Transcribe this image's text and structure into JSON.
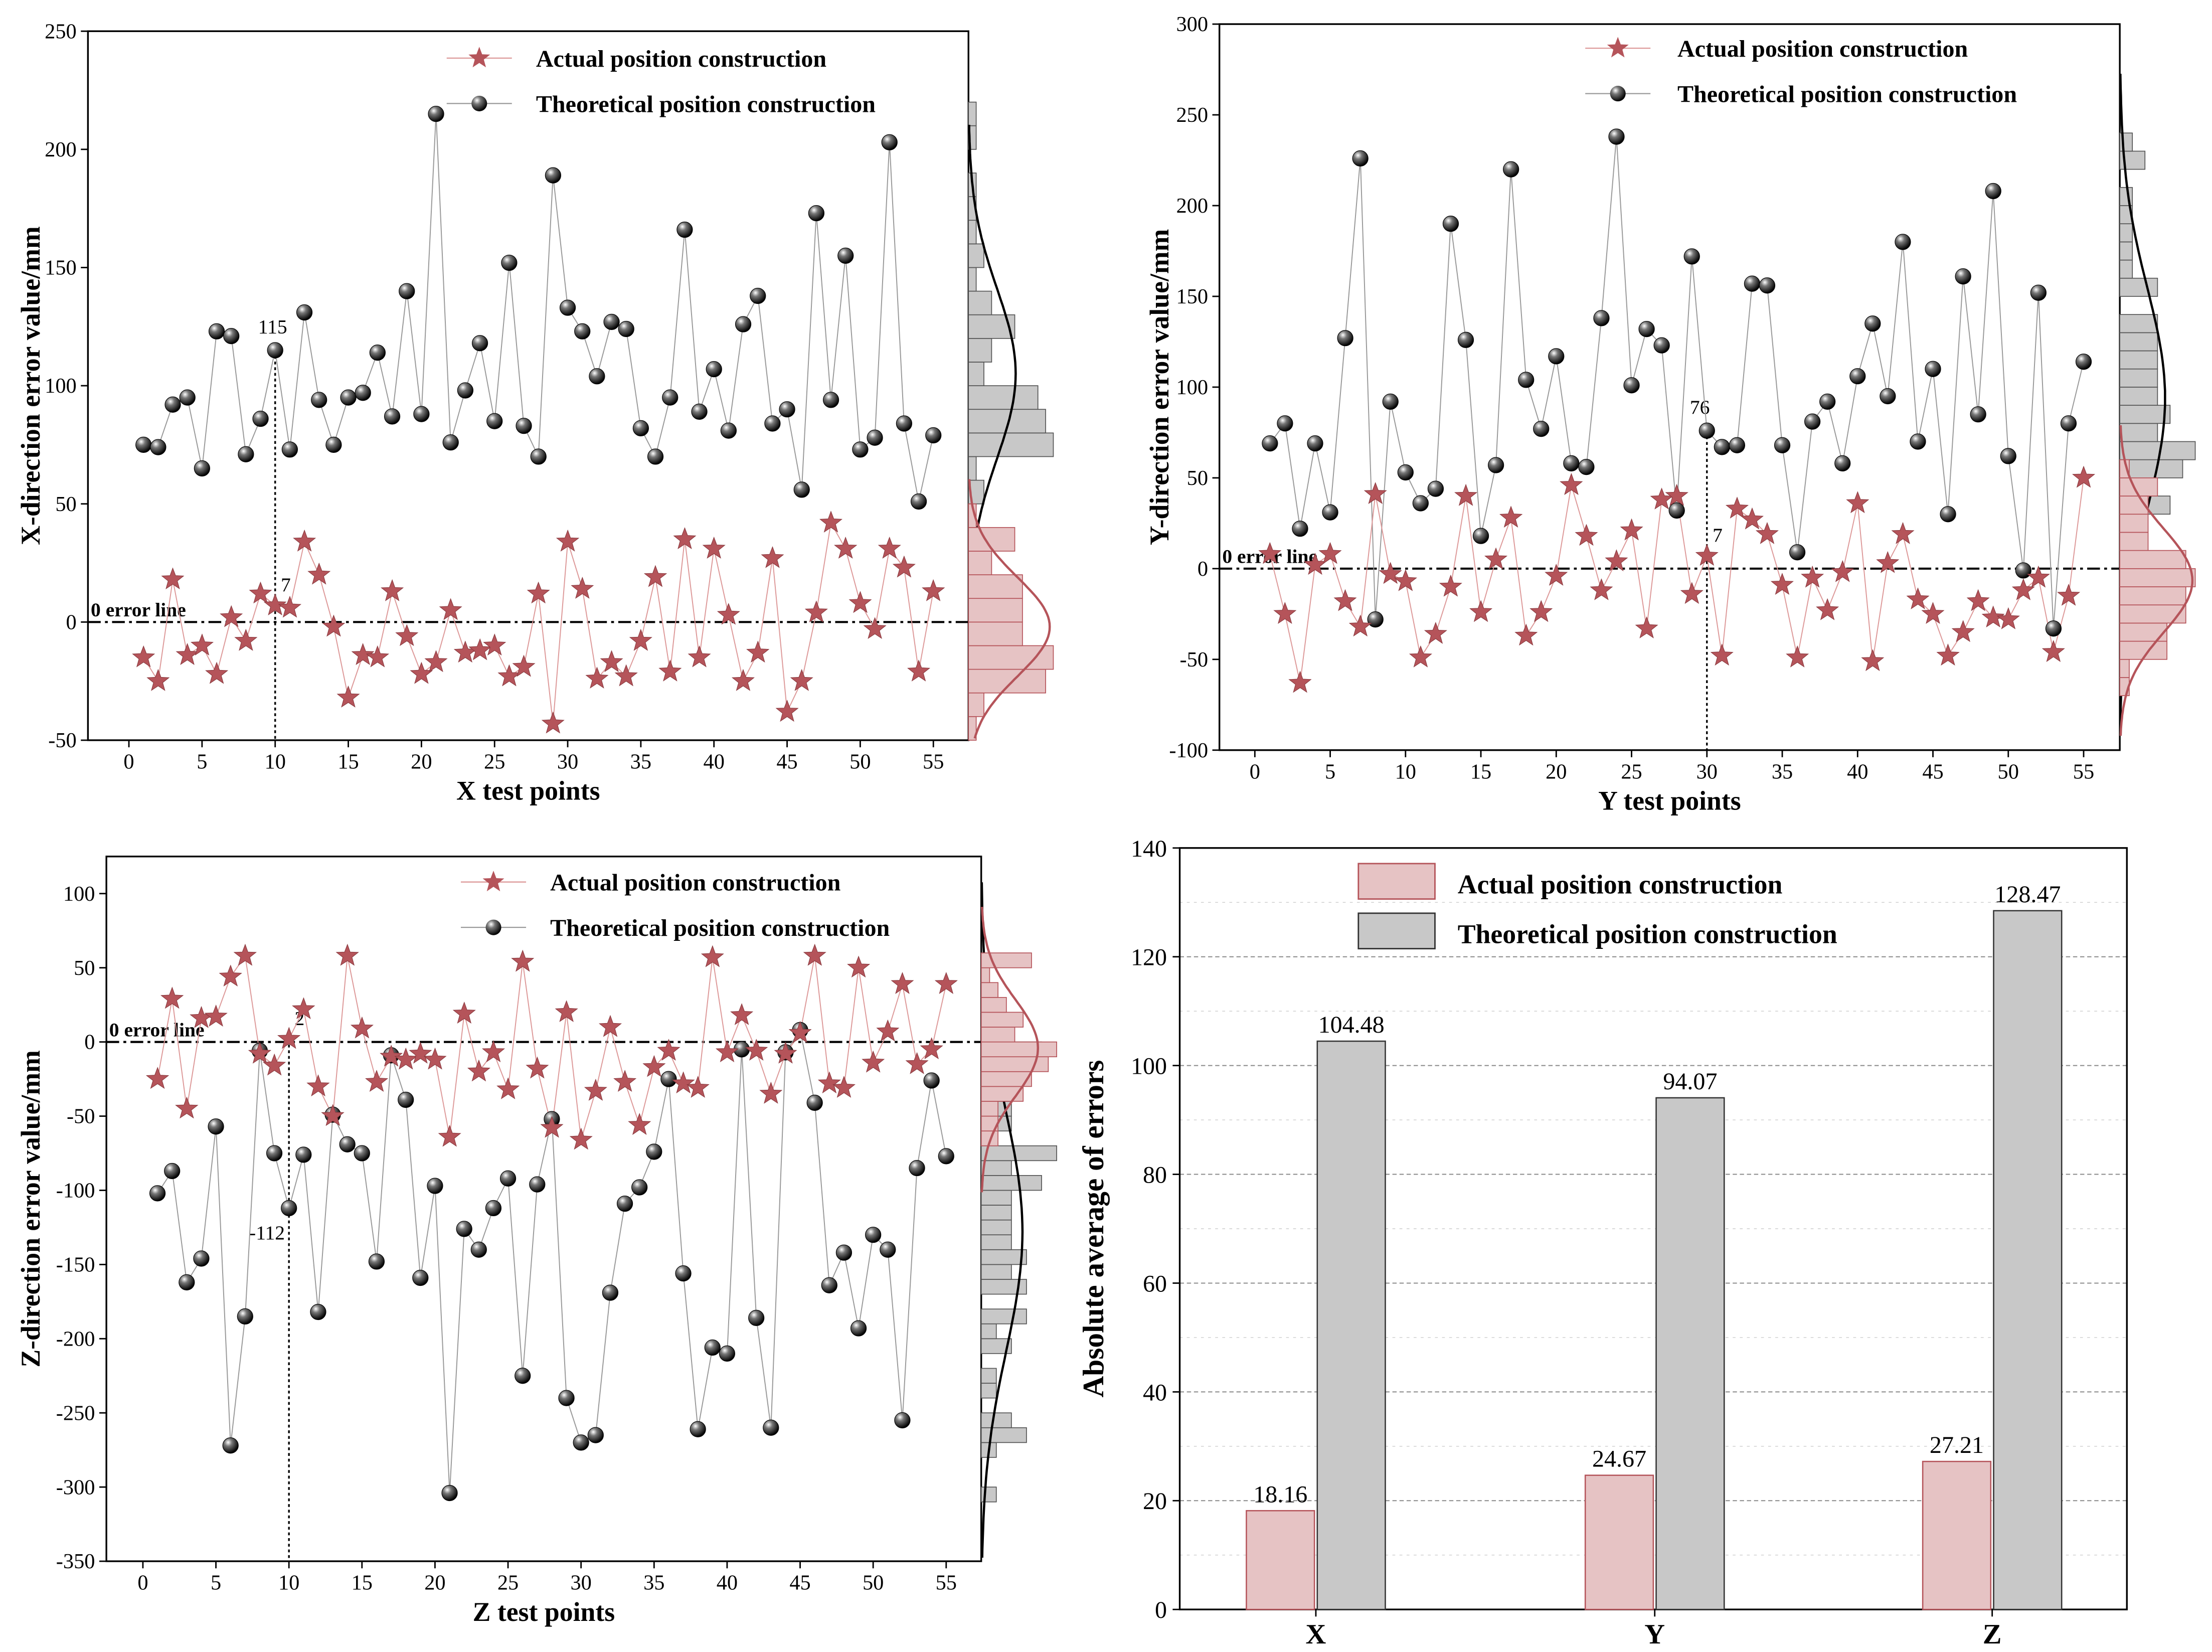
{
  "chart_data": [
    {
      "type": "line",
      "xlabel": "X test points",
      "ylabel": "X-direction error value/mm",
      "xlim": [
        -2.8,
        57.4
      ],
      "ylim": [
        -50,
        250
      ],
      "xticks": [
        0,
        5,
        10,
        15,
        20,
        25,
        30,
        35,
        40,
        45,
        50,
        55
      ],
      "yticks": [
        -50,
        0,
        50,
        100,
        150,
        200,
        250
      ],
      "zero_line_label": "0 error line",
      "legend": [
        "Actual position construction",
        "Theoretical position construction"
      ],
      "legend_position": "top-right",
      "x": [
        1,
        2,
        3,
        4,
        5,
        6,
        7,
        8,
        9,
        10,
        11,
        12,
        13,
        14,
        15,
        16,
        17,
        18,
        19,
        20,
        21,
        22,
        23,
        24,
        25,
        26,
        27,
        28,
        29,
        30,
        31,
        32,
        33,
        34,
        35,
        36,
        37,
        38,
        39,
        40,
        41,
        42,
        43,
        44,
        45,
        46,
        47,
        48,
        49,
        50,
        51,
        52,
        53,
        54,
        55
      ],
      "series": [
        {
          "name": "Actual position construction",
          "values": [
            -15,
            -25,
            18,
            -14,
            -10,
            -22,
            2,
            -8,
            12,
            7,
            6,
            34,
            20,
            -2,
            -32,
            -14,
            -15,
            13,
            -6,
            -22,
            -17,
            5,
            -13,
            -12,
            -10,
            -23,
            -19,
            12,
            -43,
            34,
            14,
            -24,
            -17,
            -23,
            -8,
            19,
            -21,
            35,
            -15,
            31,
            3,
            -25,
            -13,
            27,
            -38,
            -25,
            4,
            42,
            31,
            8,
            -3,
            31,
            23,
            -21,
            13
          ]
        },
        {
          "name": "Theoretical position construction",
          "values": [
            75,
            74,
            92,
            95,
            65,
            123,
            121,
            71,
            86,
            115,
            73,
            131,
            94,
            75,
            95,
            97,
            114,
            87,
            140,
            88,
            215,
            76,
            98,
            118,
            85,
            152,
            83,
            70,
            189,
            133,
            123,
            104,
            127,
            124,
            82,
            70,
            95,
            166,
            89,
            107,
            81,
            126,
            138,
            84,
            90,
            56,
            173,
            94,
            155,
            73,
            78,
            203,
            84,
            51,
            79
          ]
        }
      ],
      "annotations": [
        {
          "x": 10,
          "theoretical": "115",
          "actual": "7"
        }
      ]
    },
    {
      "type": "line",
      "xlabel": "Y test points",
      "ylabel": "Y-direction error value/mm",
      "xlim": [
        -2.35,
        57.4
      ],
      "ylim": [
        -100,
        300
      ],
      "xticks": [
        0,
        5,
        10,
        15,
        20,
        25,
        30,
        35,
        40,
        45,
        50,
        55
      ],
      "yticks": [
        -100,
        -50,
        0,
        50,
        100,
        150,
        200,
        250,
        300
      ],
      "zero_line_label": "0 error line",
      "legend": [
        "Actual position construction",
        "Theoretical position construction"
      ],
      "legend_position": "top-right",
      "x": [
        1,
        2,
        3,
        4,
        5,
        6,
        7,
        8,
        9,
        10,
        11,
        12,
        13,
        14,
        15,
        16,
        17,
        18,
        19,
        20,
        21,
        22,
        23,
        24,
        25,
        26,
        27,
        28,
        29,
        30,
        31,
        32,
        33,
        34,
        35,
        36,
        37,
        38,
        39,
        40,
        41,
        42,
        43,
        44,
        45,
        46,
        47,
        48,
        49,
        50,
        51,
        52,
        53,
        54,
        55
      ],
      "series": [
        {
          "name": "Actual position construction",
          "values": [
            8,
            -25,
            -63,
            2,
            8,
            -18,
            -32,
            41,
            -3,
            -7,
            -49,
            -36,
            -10,
            40,
            -24,
            5,
            28,
            -37,
            -24,
            -4,
            46,
            18,
            -12,
            4,
            21,
            -33,
            38,
            40,
            -14,
            7,
            -48,
            33,
            27,
            19,
            -9,
            -49,
            -5,
            -23,
            -2,
            36,
            -51,
            3,
            19,
            -17,
            -25,
            -48,
            -35,
            -18,
            -27,
            -28,
            -12,
            -5,
            -46,
            -15,
            50
          ]
        },
        {
          "name": "Theoretical position construction",
          "values": [
            69,
            80,
            22,
            69,
            31,
            127,
            226,
            -28,
            92,
            53,
            36,
            44,
            190,
            126,
            18,
            57,
            220,
            104,
            77,
            117,
            58,
            56,
            138,
            238,
            101,
            132,
            123,
            32,
            172,
            76,
            67,
            68,
            157,
            156,
            68,
            9,
            81,
            92,
            58,
            106,
            135,
            95,
            180,
            70,
            110,
            30,
            161,
            85,
            208,
            62,
            -1,
            152,
            -33,
            80,
            114
          ]
        }
      ],
      "annotations": [
        {
          "x": 30,
          "theoretical": "76",
          "actual": "7"
        }
      ]
    },
    {
      "type": "line",
      "xlabel": "Z test points",
      "ylabel": "Z-direction error value/mm",
      "xlim": [
        -2.5,
        57.4
      ],
      "ylim": [
        -350,
        125
      ],
      "xticks": [
        0,
        5,
        10,
        15,
        20,
        25,
        30,
        35,
        40,
        45,
        50,
        55
      ],
      "yticks": [
        -350,
        -300,
        -250,
        -200,
        -150,
        -100,
        -50,
        0,
        50,
        100
      ],
      "zero_line_label": "0 error line",
      "legend": [
        "Actual position construction",
        "Theoretical position construction"
      ],
      "legend_position": "top-right",
      "x": [
        1,
        2,
        3,
        4,
        5,
        6,
        7,
        8,
        9,
        10,
        11,
        12,
        13,
        14,
        15,
        16,
        17,
        18,
        19,
        20,
        21,
        22,
        23,
        24,
        25,
        26,
        27,
        28,
        29,
        30,
        31,
        32,
        33,
        34,
        35,
        36,
        37,
        38,
        39,
        40,
        41,
        42,
        43,
        44,
        45,
        46,
        47,
        48,
        49,
        50,
        51,
        52,
        53,
        54,
        55
      ],
      "series": [
        {
          "name": "Actual position construction",
          "values": [
            -25,
            29,
            -45,
            16,
            17,
            44,
            58,
            -8,
            -16,
            2,
            22,
            -30,
            -50,
            58,
            9,
            -27,
            -10,
            -12,
            -8,
            -12,
            -64,
            19,
            -20,
            -7,
            -32,
            54,
            -18,
            -58,
            20,
            -66,
            -33,
            10,
            -27,
            -56,
            -17,
            -6,
            -28,
            -31,
            57,
            -7,
            18,
            -6,
            -35,
            -8,
            6,
            58,
            -28,
            -31,
            50,
            -14,
            7,
            39,
            -15,
            -5,
            39
          ]
        },
        {
          "name": "Theoretical position construction",
          "values": [
            -102,
            -87,
            -162,
            -146,
            -57,
            -272,
            -185,
            -6,
            -75,
            -112,
            -76,
            -182,
            -49,
            -69,
            -75,
            -148,
            -9,
            -39,
            -159,
            -97,
            -304,
            -126,
            -140,
            -112,
            -92,
            -225,
            -96,
            -52,
            -240,
            -270,
            -265,
            -169,
            -109,
            -98,
            -74,
            -25,
            -156,
            -261,
            -206,
            -210,
            -5,
            -186,
            -260,
            -7,
            8,
            -41,
            -164,
            -142,
            -193,
            -130,
            -140,
            -255,
            -85,
            -26,
            -77
          ]
        }
      ],
      "annotations": [
        {
          "x": 10,
          "theoretical": "-112",
          "actual": "2"
        }
      ]
    },
    {
      "type": "bar",
      "ylabel": "Absolute average of errors",
      "categories": [
        "X",
        "Y",
        "Z"
      ],
      "ylim": [
        0,
        140
      ],
      "yticks": [
        0,
        20,
        40,
        60,
        80,
        100,
        120,
        140
      ],
      "legend": [
        "Actual position construction",
        "Theoretical position construction"
      ],
      "legend_position": "top-left",
      "grid": true,
      "series": [
        {
          "name": "Actual position construction",
          "values": [
            18.16,
            24.67,
            27.21
          ],
          "labels": [
            "18.16",
            "24.67",
            "27.21"
          ]
        },
        {
          "name": "Theoretical position construction",
          "values": [
            104.48,
            94.07,
            128.47
          ],
          "labels": [
            "104.48",
            "94.07",
            "128.47"
          ]
        }
      ]
    }
  ],
  "colors": {
    "actual": "#b5545a",
    "actual_fill": "#e6c3c4",
    "theoretical": "#111111",
    "theoretical_fill": "#c8c8c8",
    "grid": "#bbbbbb"
  }
}
